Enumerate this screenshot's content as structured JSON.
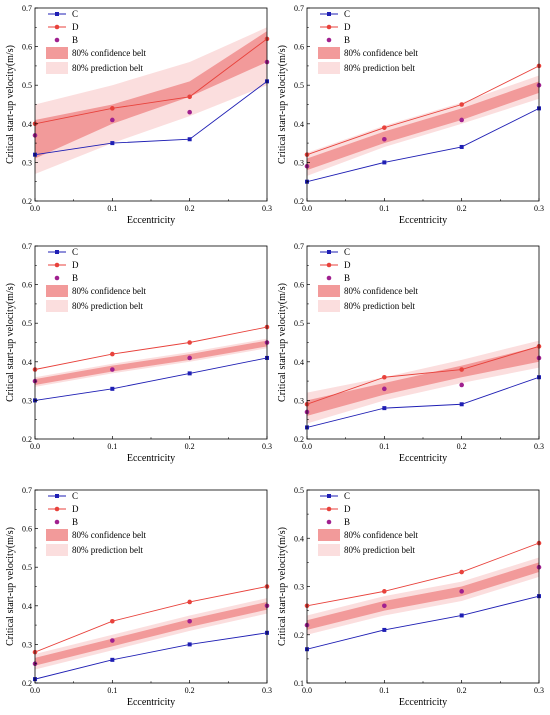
{
  "colors": {
    "C": "#1f1fb4",
    "D": "#e8423c",
    "B": "#a0208f",
    "confidence": "#f29a9a",
    "prediction": "#fbdede"
  },
  "chart_data": [
    {
      "type": "line",
      "xlabel": "Eccentricity",
      "ylabel": "Critical start-up velocity(m/s)",
      "x": [
        0.0,
        0.1,
        0.2,
        0.3
      ],
      "xticks": [
        "0.0",
        "0.1",
        "0.2",
        "0.3"
      ],
      "ylim": [
        0.2,
        0.7
      ],
      "yticks": [
        "0.2",
        "0.3",
        "0.4",
        "0.5",
        "0.6",
        "0.7"
      ],
      "legend_position": "top-left",
      "series": [
        {
          "name": "C",
          "values": [
            0.32,
            0.35,
            0.36,
            0.51
          ]
        },
        {
          "name": "D",
          "values": [
            0.4,
            0.44,
            0.47,
            0.62
          ]
        },
        {
          "name": "B",
          "values": [
            0.37,
            0.41,
            0.43,
            0.56
          ]
        }
      ],
      "bands": [
        {
          "name": "80% confidence belt",
          "lower": [
            0.31,
            0.4,
            0.47,
            0.56
          ],
          "upper": [
            0.41,
            0.45,
            0.51,
            0.64
          ]
        },
        {
          "name": "80% prediction belt",
          "lower": [
            0.27,
            0.35,
            0.42,
            0.5
          ],
          "upper": [
            0.45,
            0.5,
            0.56,
            0.65
          ]
        }
      ]
    },
    {
      "type": "line",
      "xlabel": "Eccentricity",
      "ylabel": "Critical start-up velocity(m/s)",
      "x": [
        0.0,
        0.1,
        0.2,
        0.3
      ],
      "xticks": [
        "0.0",
        "0.1",
        "0.2",
        "0.3"
      ],
      "ylim": [
        0.2,
        0.7
      ],
      "yticks": [
        "0.2",
        "0.3",
        "0.4",
        "0.5",
        "0.6",
        "0.7"
      ],
      "legend_position": "top-left",
      "series": [
        {
          "name": "C",
          "values": [
            0.25,
            0.3,
            0.34,
            0.44
          ]
        },
        {
          "name": "D",
          "values": [
            0.32,
            0.39,
            0.45,
            0.55
          ]
        },
        {
          "name": "B",
          "values": [
            0.29,
            0.36,
            0.41,
            0.5
          ]
        }
      ],
      "bands": [
        {
          "name": "80% confidence belt",
          "lower": [
            0.28,
            0.35,
            0.41,
            0.48
          ],
          "upper": [
            0.31,
            0.38,
            0.44,
            0.51
          ]
        },
        {
          "name": "80% prediction belt",
          "lower": [
            0.265,
            0.34,
            0.4,
            0.465
          ],
          "upper": [
            0.325,
            0.395,
            0.455,
            0.525
          ]
        }
      ]
    },
    {
      "type": "line",
      "xlabel": "Eccentricity",
      "ylabel": "Critical start-up velocity(m/s)",
      "x": [
        0.0,
        0.1,
        0.2,
        0.3
      ],
      "xticks": [
        "0.0",
        "0.1",
        "0.2",
        "0.3"
      ],
      "ylim": [
        0.2,
        0.7
      ],
      "yticks": [
        "0.2",
        "0.3",
        "0.4",
        "0.5",
        "0.6",
        "0.7"
      ],
      "legend_position": "top-left",
      "series": [
        {
          "name": "C",
          "values": [
            0.3,
            0.33,
            0.37,
            0.41
          ]
        },
        {
          "name": "D",
          "values": [
            0.38,
            0.42,
            0.45,
            0.49
          ]
        },
        {
          "name": "B",
          "values": [
            0.35,
            0.38,
            0.41,
            0.45
          ]
        }
      ],
      "bands": [
        {
          "name": "80% confidence belt",
          "lower": [
            0.34,
            0.375,
            0.405,
            0.44
          ],
          "upper": [
            0.355,
            0.39,
            0.42,
            0.455
          ]
        },
        {
          "name": "80% prediction belt",
          "lower": [
            0.335,
            0.37,
            0.4,
            0.435
          ],
          "upper": [
            0.36,
            0.395,
            0.425,
            0.46
          ]
        }
      ]
    },
    {
      "type": "line",
      "xlabel": "Eccentricity",
      "ylabel": "Critical start-up velocity(m/s)",
      "x": [
        0.0,
        0.1,
        0.2,
        0.3
      ],
      "xticks": [
        "0.0",
        "0.1",
        "0.2",
        "0.3"
      ],
      "ylim": [
        0.2,
        0.7
      ],
      "yticks": [
        "0.2",
        "0.3",
        "0.4",
        "0.5",
        "0.6",
        "0.7"
      ],
      "legend_position": "top-left",
      "series": [
        {
          "name": "C",
          "values": [
            0.23,
            0.28,
            0.29,
            0.36
          ]
        },
        {
          "name": "D",
          "values": [
            0.29,
            0.36,
            0.38,
            0.44
          ]
        },
        {
          "name": "B",
          "values": [
            0.27,
            0.33,
            0.34,
            0.41
          ]
        }
      ],
      "bands": [
        {
          "name": "80% confidence belt",
          "lower": [
            0.26,
            0.315,
            0.36,
            0.4
          ],
          "upper": [
            0.3,
            0.345,
            0.39,
            0.44
          ]
        },
        {
          "name": "80% prediction belt",
          "lower": [
            0.24,
            0.3,
            0.345,
            0.385
          ],
          "upper": [
            0.32,
            0.36,
            0.405,
            0.455
          ]
        }
      ]
    },
    {
      "type": "line",
      "xlabel": "Eccentricity",
      "ylabel": "Critical start-up velocity(m/s)",
      "x": [
        0.0,
        0.1,
        0.2,
        0.3
      ],
      "xticks": [
        "0.0",
        "0.1",
        "0.2",
        "0.3"
      ],
      "ylim": [
        0.2,
        0.7
      ],
      "yticks": [
        "0.2",
        "0.3",
        "0.4",
        "0.5",
        "0.6",
        "0.7"
      ],
      "legend_position": "top-left",
      "series": [
        {
          "name": "C",
          "values": [
            0.21,
            0.26,
            0.3,
            0.33
          ]
        },
        {
          "name": "D",
          "values": [
            0.28,
            0.36,
            0.41,
            0.45
          ]
        },
        {
          "name": "B",
          "values": [
            0.25,
            0.31,
            0.36,
            0.4
          ]
        }
      ],
      "bands": [
        {
          "name": "80% confidence belt",
          "lower": [
            0.245,
            0.295,
            0.345,
            0.39
          ],
          "upper": [
            0.265,
            0.315,
            0.365,
            0.41
          ]
        },
        {
          "name": "80% prediction belt",
          "lower": [
            0.235,
            0.285,
            0.335,
            0.38
          ],
          "upper": [
            0.275,
            0.325,
            0.375,
            0.42
          ]
        }
      ]
    },
    {
      "type": "line",
      "xlabel": "Eccentricity",
      "ylabel": "Critical start-up velocity(m/s)",
      "x": [
        0.0,
        0.1,
        0.2,
        0.3
      ],
      "xticks": [
        "0.0",
        "0.1",
        "0.2",
        "0.3"
      ],
      "ylim": [
        0.1,
        0.5
      ],
      "yticks": [
        "0.1",
        "0.2",
        "0.3",
        "0.4",
        "0.5"
      ],
      "legend_position": "top-left",
      "series": [
        {
          "name": "C",
          "values": [
            0.17,
            0.21,
            0.24,
            0.28
          ]
        },
        {
          "name": "D",
          "values": [
            0.26,
            0.29,
            0.33,
            0.39
          ]
        },
        {
          "name": "B",
          "values": [
            0.22,
            0.26,
            0.29,
            0.34
          ]
        }
      ],
      "bands": [
        {
          "name": "80% confidence belt",
          "lower": [
            0.21,
            0.25,
            0.28,
            0.33
          ],
          "upper": [
            0.23,
            0.27,
            0.3,
            0.35
          ]
        },
        {
          "name": "80% prediction belt",
          "lower": [
            0.2,
            0.24,
            0.27,
            0.32
          ],
          "upper": [
            0.24,
            0.28,
            0.31,
            0.36
          ]
        }
      ]
    }
  ]
}
